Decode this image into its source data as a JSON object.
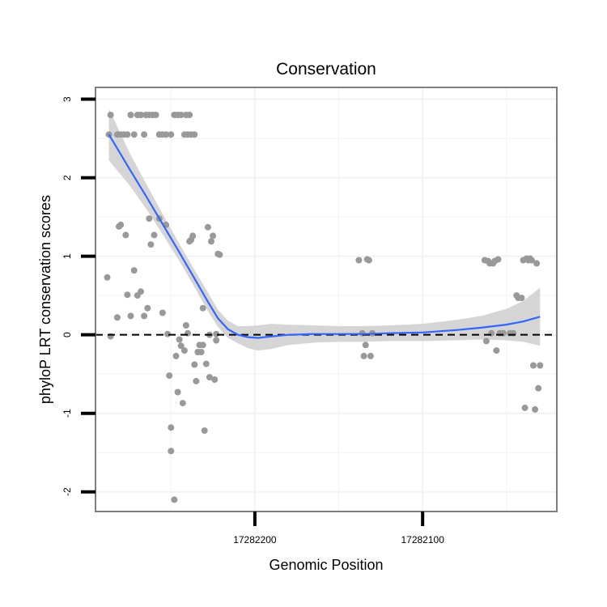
{
  "chart_data": {
    "type": "scatter",
    "title": "Conservation",
    "xlabel": "Genomic Position",
    "ylabel": "phyloP LRT conservation scores",
    "x_reversed": true,
    "xlim": [
      17282295,
      17282020
    ],
    "ylim": [
      -2.25,
      3.15
    ],
    "x_ticks": [
      {
        "value": 17282200,
        "label": "17282200"
      },
      {
        "value": 17282100,
        "label": "17282100"
      }
    ],
    "y_ticks": [
      {
        "value": 3,
        "label": "3"
      },
      {
        "value": 2,
        "label": "2"
      },
      {
        "value": 1,
        "label": "1"
      },
      {
        "value": 0,
        "label": "0"
      },
      {
        "value": -1,
        "label": "-1"
      },
      {
        "value": -2,
        "label": "-2"
      }
    ],
    "reference_line": {
      "y": 0,
      "style": "dashed"
    },
    "colors": {
      "points": "#999999",
      "smooth": "#3366ff",
      "ribbon": "#d3d3d3",
      "panel_border": "#7f7f7f",
      "grid": "#f2f2f2"
    },
    "series": [
      {
        "name": "scores",
        "kind": "points",
        "points": [
          [
            17282287,
            2.55
          ],
          [
            17282286,
            2.8
          ],
          [
            17282282,
            2.55
          ],
          [
            17282280,
            2.55
          ],
          [
            17282278,
            2.55
          ],
          [
            17282276,
            2.55
          ],
          [
            17282274,
            2.8
          ],
          [
            17282272,
            2.55
          ],
          [
            17282270,
            2.8
          ],
          [
            17282268,
            2.8
          ],
          [
            17282266,
            2.55
          ],
          [
            17282265,
            2.8
          ],
          [
            17282263,
            2.8
          ],
          [
            17282261,
            2.8
          ],
          [
            17282259,
            2.8
          ],
          [
            17282257,
            2.55
          ],
          [
            17282255,
            2.55
          ],
          [
            17282253,
            2.55
          ],
          [
            17282250,
            2.55
          ],
          [
            17282248,
            2.8
          ],
          [
            17282246,
            2.8
          ],
          [
            17282244,
            2.8
          ],
          [
            17282242,
            2.55
          ],
          [
            17282241,
            2.8
          ],
          [
            17282240,
            2.55
          ],
          [
            17282239,
            2.8
          ],
          [
            17282238,
            2.55
          ],
          [
            17282236,
            2.55
          ],
          [
            17282288,
            0.73
          ],
          [
            17282286,
            -0.02
          ],
          [
            17282282,
            0.22
          ],
          [
            17282281,
            1.38
          ],
          [
            17282280,
            1.4
          ],
          [
            17282277,
            1.27
          ],
          [
            17282276,
            0.51
          ],
          [
            17282274,
            0.24
          ],
          [
            17282272,
            0.82
          ],
          [
            17282270,
            0.5
          ],
          [
            17282268,
            0.55
          ],
          [
            17282266,
            0.24
          ],
          [
            17282264,
            0.34
          ],
          [
            17282263,
            1.48
          ],
          [
            17282262,
            1.15
          ],
          [
            17282260,
            1.27
          ],
          [
            17282257,
            1.48
          ],
          [
            17282255,
            0.28
          ],
          [
            17282253,
            1.4
          ],
          [
            17282252,
            0.01
          ],
          [
            17282251,
            -0.52
          ],
          [
            17282250,
            -1.48
          ],
          [
            17282250,
            -1.18
          ],
          [
            17282248,
            -2.1
          ],
          [
            17282247,
            -0.27
          ],
          [
            17282246,
            -0.73
          ],
          [
            17282245,
            -0.06
          ],
          [
            17282244,
            -0.14
          ],
          [
            17282243,
            -0.87
          ],
          [
            17282242,
            -0.2
          ],
          [
            17282241,
            0.12
          ],
          [
            17282240,
            0.02
          ],
          [
            17282239,
            1.19
          ],
          [
            17282238,
            1.21
          ],
          [
            17282237,
            1.26
          ],
          [
            17282236,
            -0.38
          ],
          [
            17282235,
            -0.59
          ],
          [
            17282234,
            -0.22
          ],
          [
            17282233,
            -0.13
          ],
          [
            17282232,
            -0.22
          ],
          [
            17282231,
            -0.13
          ],
          [
            17282231,
            0.34
          ],
          [
            17282230,
            -1.22
          ],
          [
            17282229,
            -0.37
          ],
          [
            17282228,
            1.37
          ],
          [
            17282227,
            0.0
          ],
          [
            17282227,
            -0.54
          ],
          [
            17282226,
            1.19
          ],
          [
            17282225,
            1.26
          ],
          [
            17282224,
            -0.57
          ],
          [
            17282223,
            0.01
          ],
          [
            17282223,
            -0.07
          ],
          [
            17282222,
            1.03
          ],
          [
            17282221,
            1.02
          ],
          [
            17282138,
            0.95
          ],
          [
            17282136,
            0.02
          ],
          [
            17282135,
            -0.27
          ],
          [
            17282134,
            -0.13
          ],
          [
            17282133,
            0.96
          ],
          [
            17282132,
            0.95
          ],
          [
            17282131,
            -0.27
          ],
          [
            17282130,
            0.02
          ],
          [
            17282063,
            0.95
          ],
          [
            17282062,
            -0.08
          ],
          [
            17282061,
            0.94
          ],
          [
            17282060,
            0.91
          ],
          [
            17282059,
            0.02
          ],
          [
            17282058,
            0.91
          ],
          [
            17282057,
            0.94
          ],
          [
            17282056,
            -0.2
          ],
          [
            17282055,
            0.96
          ],
          [
            17282054,
            0.02
          ],
          [
            17282052,
            0.02
          ],
          [
            17282048,
            0.02
          ],
          [
            17282046,
            0.02
          ],
          [
            17282044,
            0.5
          ],
          [
            17282043,
            0.47
          ],
          [
            17282041,
            0.47
          ],
          [
            17282040,
            0.95
          ],
          [
            17282039,
            -0.93
          ],
          [
            17282038,
            0.97
          ],
          [
            17282037,
            0.95
          ],
          [
            17282036,
            0.97
          ],
          [
            17282035,
            0.95
          ],
          [
            17282034,
            -0.39
          ],
          [
            17282033,
            -0.95
          ],
          [
            17282032,
            0.91
          ],
          [
            17282031,
            -0.68
          ],
          [
            17282030,
            -0.39
          ]
        ]
      },
      {
        "name": "loess smooth",
        "kind": "line",
        "x": [
          17282287,
          17282275,
          17282265,
          17282255,
          17282245,
          17282235,
          17282228,
          17282222,
          17282216,
          17282210,
          17282204,
          17282198,
          17282190,
          17282180,
          17282165,
          17282150,
          17282135,
          17282120,
          17282100,
          17282080,
          17282065,
          17282050,
          17282040,
          17282030
        ],
        "y": [
          2.55,
          2.12,
          1.77,
          1.41,
          1.05,
          0.68,
          0.42,
          0.21,
          0.07,
          0.0,
          -0.03,
          -0.04,
          -0.02,
          0.0,
          0.01,
          0.01,
          0.01,
          0.02,
          0.03,
          0.06,
          0.09,
          0.13,
          0.17,
          0.23
        ],
        "ci_lower": [
          2.22,
          1.91,
          1.61,
          1.28,
          0.94,
          0.57,
          0.3,
          0.1,
          -0.04,
          -0.11,
          -0.17,
          -0.2,
          -0.18,
          -0.13,
          -0.1,
          -0.09,
          -0.09,
          -0.08,
          -0.08,
          -0.07,
          -0.06,
          -0.07,
          -0.09,
          -0.14
        ],
        "ci_upper": [
          2.88,
          2.33,
          1.93,
          1.54,
          1.16,
          0.79,
          0.54,
          0.32,
          0.18,
          0.11,
          0.11,
          0.12,
          0.14,
          0.13,
          0.12,
          0.11,
          0.11,
          0.12,
          0.14,
          0.19,
          0.24,
          0.33,
          0.43,
          0.6
        ]
      }
    ]
  }
}
